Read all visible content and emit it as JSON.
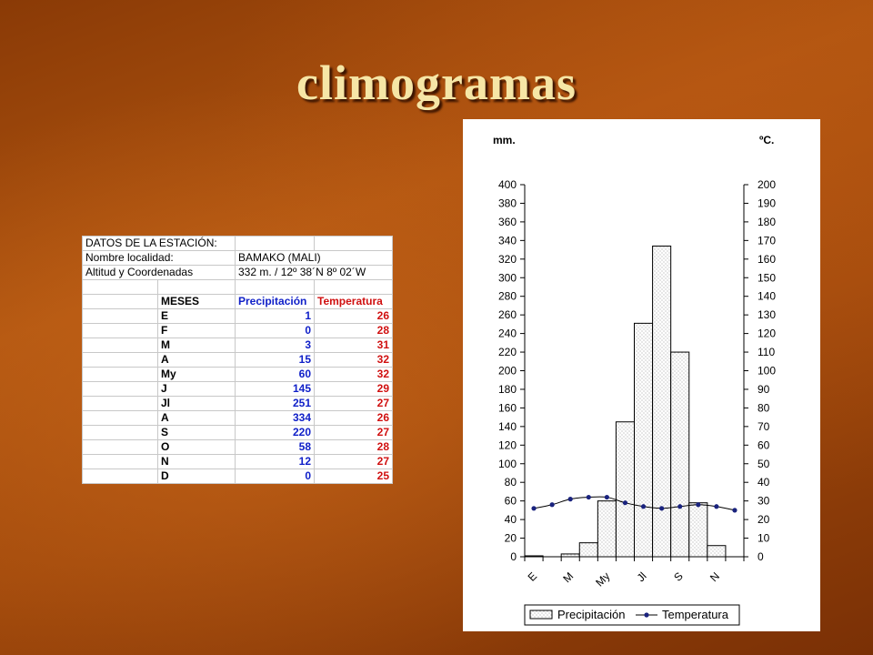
{
  "slide": {
    "title": "climogramas"
  },
  "station_table": {
    "header": "DATOS DE LA ESTACIÓN:",
    "name_label": "Nombre localidad:",
    "name_value": "BAMAKO (MALI)",
    "coords_label": "Altitud y Coordenadas",
    "coords_value": "332 m. / 12º 38´N 8º 02´W",
    "col_months": "MESES",
    "col_precip": "Precipitación",
    "col_temp": "Temperatura",
    "rows": [
      {
        "month": "E",
        "precip": "1",
        "temp": "26"
      },
      {
        "month": "F",
        "precip": "0",
        "temp": "28"
      },
      {
        "month": "M",
        "precip": "3",
        "temp": "31"
      },
      {
        "month": "A",
        "precip": "15",
        "temp": "32"
      },
      {
        "month": "My",
        "precip": "60",
        "temp": "32"
      },
      {
        "month": "J",
        "precip": "145",
        "temp": "29"
      },
      {
        "month": "Jl",
        "precip": "251",
        "temp": "27"
      },
      {
        "month": "A",
        "precip": "334",
        "temp": "26"
      },
      {
        "month": "S",
        "precip": "220",
        "temp": "27"
      },
      {
        "month": "O",
        "precip": "58",
        "temp": "28"
      },
      {
        "month": "N",
        "precip": "12",
        "temp": "27"
      },
      {
        "month": "D",
        "precip": "0",
        "temp": "25"
      }
    ]
  },
  "chart_data": {
    "type": "bar",
    "categories": [
      "E",
      "F",
      "M",
      "A",
      "My",
      "J",
      "Jl",
      "A",
      "S",
      "O",
      "N",
      "D"
    ],
    "x_tick_labels": [
      "E",
      "",
      "M",
      "",
      "My",
      "",
      "Jl",
      "",
      "S",
      "",
      "N",
      ""
    ],
    "series": [
      {
        "name": "Precipitación",
        "type": "bar",
        "axis": "left",
        "values": [
          1,
          0,
          3,
          15,
          60,
          145,
          251,
          334,
          220,
          58,
          12,
          0
        ]
      },
      {
        "name": "Temperatura",
        "type": "line",
        "axis": "right",
        "values": [
          26,
          28,
          31,
          32,
          32,
          29,
          27,
          26,
          27,
          28,
          27,
          25
        ]
      }
    ],
    "ylabel": "mm.",
    "y2label": "ºC.",
    "ylim": [
      0,
      400
    ],
    "y2lim": [
      0,
      200
    ],
    "y_ticks": [
      0,
      20,
      40,
      60,
      80,
      100,
      120,
      140,
      160,
      180,
      200,
      220,
      240,
      260,
      280,
      300,
      320,
      340,
      360,
      380,
      400
    ],
    "y2_ticks": [
      0,
      10,
      20,
      30,
      40,
      50,
      60,
      70,
      80,
      90,
      100,
      110,
      120,
      130,
      140,
      150,
      160,
      170,
      180,
      190,
      200
    ],
    "legend_position": "bottom",
    "colors": {
      "bar_fill": "#ffffff",
      "bar_dots": "#888888",
      "line": "#000000",
      "marker": "#1a237e"
    }
  }
}
